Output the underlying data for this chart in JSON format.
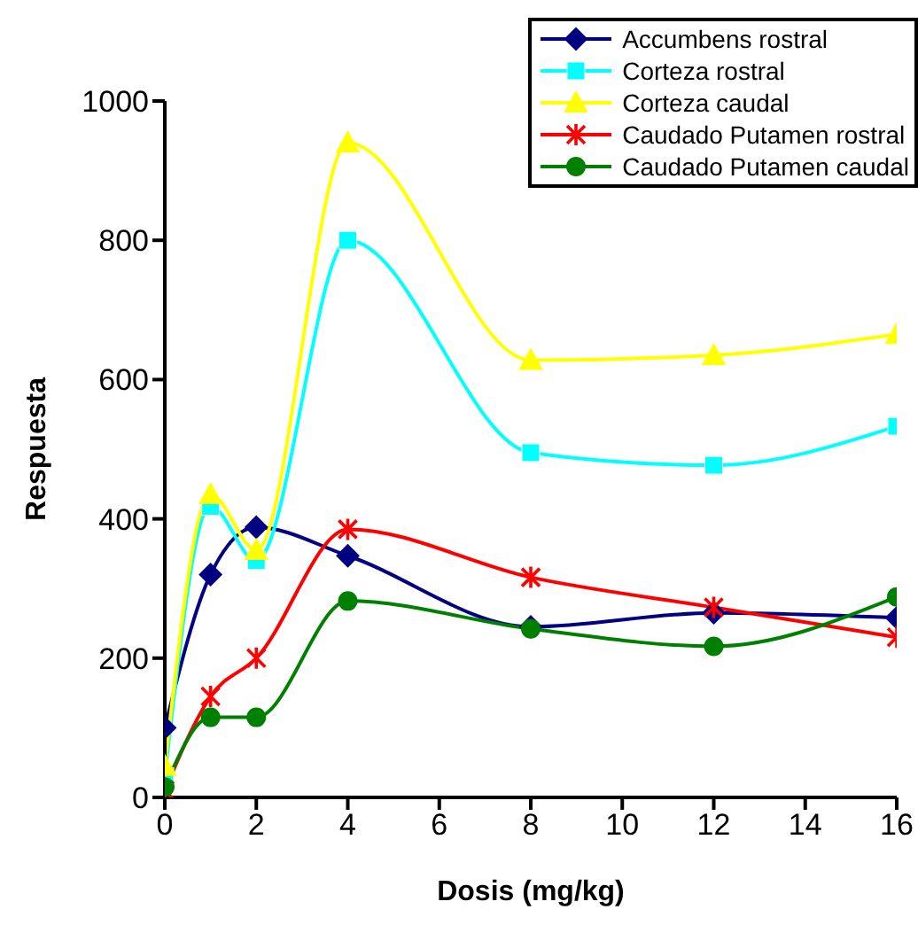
{
  "chart_data": {
    "type": "line",
    "xlabel": "Dosis (mg/kg)",
    "ylabel": "Respuesta",
    "x": [
      0,
      1,
      2,
      4,
      8,
      12,
      16
    ],
    "xlim": [
      0,
      16
    ],
    "xticks": [
      0,
      2,
      4,
      6,
      8,
      10,
      12,
      14,
      16
    ],
    "ylim": [
      0,
      1000
    ],
    "yticks": [
      0,
      200,
      400,
      600,
      800,
      1000
    ],
    "grid": false,
    "legend": "top right",
    "line_style": "solid",
    "series": [
      {
        "name": "Accumbens rostral",
        "color": "#000080",
        "marker": "diamond",
        "values": [
          100,
          320,
          388,
          347,
          245,
          265,
          258
        ]
      },
      {
        "name": "Corteza rostral",
        "color": "#00ffff",
        "marker": "square",
        "values": [
          30,
          418,
          340,
          800,
          495,
          477,
          533
        ]
      },
      {
        "name": "Corteza caudal",
        "color": "#ffff00",
        "marker": "triangle",
        "values": [
          45,
          435,
          355,
          940,
          628,
          635,
          665
        ]
      },
      {
        "name": "Caudado Putamen rostral",
        "color": "#ff0000",
        "marker": "cross",
        "values": [
          10,
          145,
          200,
          385,
          316,
          273,
          230
        ]
      },
      {
        "name": "Caudado Putamen caudal",
        "color": "#008000",
        "marker": "circle",
        "values": [
          15,
          115,
          115,
          282,
          242,
          217,
          288
        ]
      }
    ]
  }
}
